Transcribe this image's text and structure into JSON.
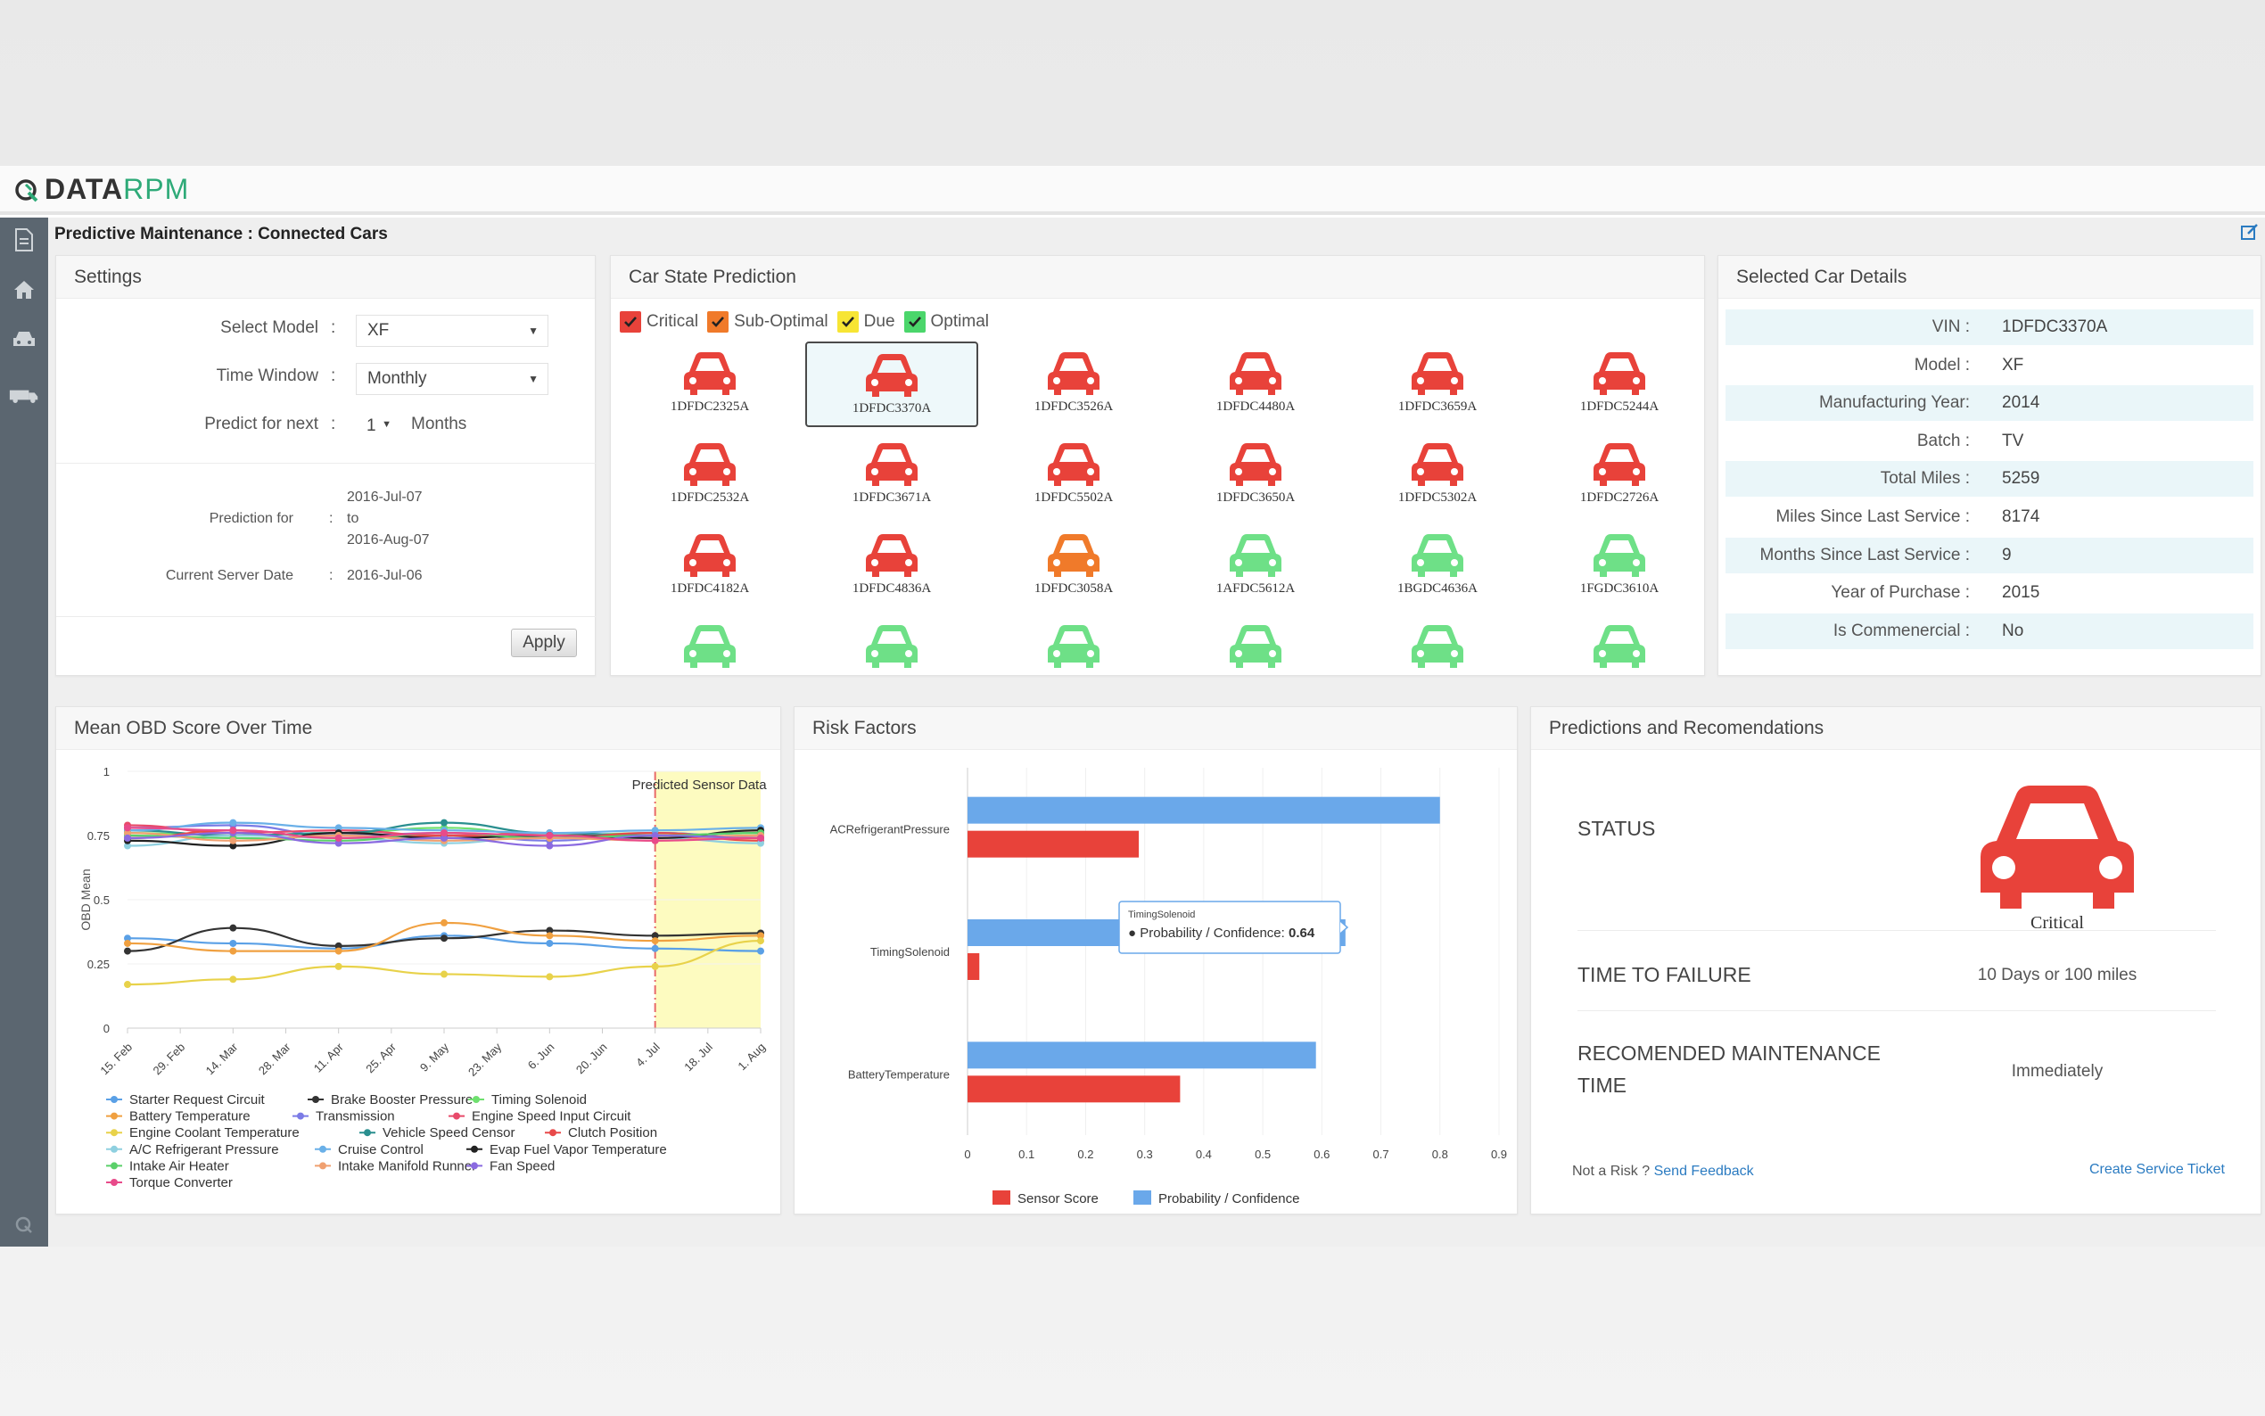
{
  "header": {
    "brand_a": "DATA",
    "brand_b": "RPM"
  },
  "page_title": "Predictive Maintenance : Connected Cars",
  "settings": {
    "title": "Settings",
    "model_label": "Select Model",
    "model_value": "XF",
    "window_label": "Time Window",
    "window_value": "Monthly",
    "predict_label": "Predict for next",
    "predict_value": "1",
    "predict_unit": "Months",
    "prediction_for_label": "Prediction for",
    "prediction_from": "2016-Jul-07",
    "prediction_to_word": "to",
    "prediction_to": "2016-Aug-07",
    "server_date_label": "Current Server Date",
    "server_date": "2016-Jul-06",
    "colon": ":",
    "apply": "Apply"
  },
  "car_state": {
    "title": "Car State Prediction",
    "legend": [
      {
        "label": "Critical",
        "color": "#e8423a"
      },
      {
        "label": "Sub-Optimal",
        "color": "#f07a2a"
      },
      {
        "label": "Due",
        "color": "#f7e534"
      },
      {
        "label": "Optimal",
        "color": "#4bd66b"
      }
    ],
    "cars": [
      {
        "id": "1DFDC2325A",
        "state": "critical"
      },
      {
        "id": "1DFDC3370A",
        "state": "critical",
        "selected": true
      },
      {
        "id": "1DFDC3526A",
        "state": "critical"
      },
      {
        "id": "1DFDC4480A",
        "state": "critical"
      },
      {
        "id": "1DFDC3659A",
        "state": "critical"
      },
      {
        "id": "1DFDC5244A",
        "state": "critical"
      },
      {
        "id": "1DFDC2532A",
        "state": "critical"
      },
      {
        "id": "1DFDC3671A",
        "state": "critical"
      },
      {
        "id": "1DFDC5502A",
        "state": "critical"
      },
      {
        "id": "1DFDC3650A",
        "state": "critical"
      },
      {
        "id": "1DFDC5302A",
        "state": "critical"
      },
      {
        "id": "1DFDC2726A",
        "state": "critical"
      },
      {
        "id": "1DFDC4182A",
        "state": "critical"
      },
      {
        "id": "1DFDC4836A",
        "state": "critical"
      },
      {
        "id": "1DFDC3058A",
        "state": "suboptimal"
      },
      {
        "id": "1AFDC5612A",
        "state": "optimal"
      },
      {
        "id": "1BGDC4636A",
        "state": "optimal"
      },
      {
        "id": "1FGDC3610A",
        "state": "optimal"
      },
      {
        "id": "",
        "state": "optimal"
      },
      {
        "id": "",
        "state": "optimal"
      },
      {
        "id": "",
        "state": "optimal"
      },
      {
        "id": "",
        "state": "optimal"
      },
      {
        "id": "",
        "state": "optimal"
      },
      {
        "id": "",
        "state": "optimal"
      }
    ],
    "state_colors": {
      "critical": "#e8423a",
      "suboptimal": "#f07a2a",
      "due": "#f7e534",
      "optimal": "#6ee087"
    }
  },
  "details": {
    "title": "Selected Car Details",
    "rows": [
      {
        "k": "VIN :",
        "v": "1DFDC3370A"
      },
      {
        "k": "Model :",
        "v": "XF"
      },
      {
        "k": "Manufacturing Year:",
        "v": "2014"
      },
      {
        "k": "Batch :",
        "v": "TV"
      },
      {
        "k": "Total Miles :",
        "v": "5259"
      },
      {
        "k": "Miles Since Last Service :",
        "v": "8174"
      },
      {
        "k": "Months Since Last Service :",
        "v": "9"
      },
      {
        "k": "Year of Purchase :",
        "v": "2015"
      },
      {
        "k": "Is Commenercial :",
        "v": "No"
      }
    ]
  },
  "obd": {
    "title": "Mean OBD Score Over Time",
    "chart_data": {
      "type": "line",
      "title": "",
      "ylabel": "OBD Mean",
      "xlabel": "",
      "ylim": [
        0,
        1
      ],
      "yticks": [
        "0",
        "0.25",
        "0.5",
        "0.75",
        "1"
      ],
      "x": [
        "15. Feb",
        "29. Feb",
        "14. Mar",
        "28. Mar",
        "11. Apr",
        "25. Apr",
        "9. May",
        "23. May",
        "6. Jun",
        "20. Jun",
        "4. Jul",
        "18. Jul",
        "1. Aug"
      ],
      "band_label": "Predicted Sensor Data",
      "series": [
        {
          "name": "Starter Request Circuit",
          "color": "#5aa0e6",
          "x": [
            0,
            2,
            4,
            6,
            8,
            10,
            12
          ],
          "values": [
            0.35,
            0.33,
            0.31,
            0.36,
            0.33,
            0.31,
            0.3
          ]
        },
        {
          "name": "Brake Booster Pressure",
          "color": "#333333",
          "x": [
            0,
            2,
            4,
            6,
            8,
            10,
            12
          ],
          "values": [
            0.3,
            0.39,
            0.32,
            0.35,
            0.38,
            0.36,
            0.37
          ]
        },
        {
          "name": "Timing Solenoid",
          "color": "#6fe06f",
          "x": [
            0,
            2,
            4,
            6,
            8,
            10,
            12
          ],
          "values": [
            0.76,
            0.75,
            0.76,
            0.78,
            0.75,
            0.76,
            0.74
          ]
        },
        {
          "name": "Battery Temperature",
          "color": "#f0a040",
          "x": [
            0,
            2,
            4,
            6,
            8,
            10,
            12
          ],
          "values": [
            0.33,
            0.3,
            0.3,
            0.41,
            0.36,
            0.34,
            0.36
          ]
        },
        {
          "name": "Transmission",
          "color": "#7b7be6",
          "x": [
            0,
            2,
            4,
            6,
            8,
            10,
            12
          ],
          "values": [
            0.78,
            0.79,
            0.75,
            0.76,
            0.73,
            0.76,
            0.74
          ]
        },
        {
          "name": "Engine Speed Input Circuit",
          "color": "#e84a6a",
          "x": [
            0,
            2,
            4,
            6,
            8,
            10,
            12
          ],
          "values": [
            0.79,
            0.76,
            0.77,
            0.75,
            0.76,
            0.74,
            0.75
          ]
        },
        {
          "name": "Engine Coolant Temperature",
          "color": "#e8d24a",
          "x": [
            0,
            2,
            4,
            6,
            8,
            10,
            12
          ],
          "values": [
            0.17,
            0.19,
            0.24,
            0.21,
            0.2,
            0.24,
            0.34
          ]
        },
        {
          "name": "Vehicle Speed Censor",
          "color": "#2a8f8f",
          "x": [
            0,
            2,
            4,
            6,
            8,
            10,
            12
          ],
          "values": [
            0.77,
            0.75,
            0.76,
            0.8,
            0.76,
            0.75,
            0.76
          ]
        },
        {
          "name": "Clutch Position",
          "color": "#e84a4a",
          "x": [
            0,
            2,
            4,
            6,
            8,
            10,
            12
          ],
          "values": [
            0.74,
            0.77,
            0.74,
            0.75,
            0.74,
            0.76,
            0.73
          ]
        },
        {
          "name": "A/C Refrigerant Pressure",
          "color": "#8fd0e0",
          "x": [
            0,
            2,
            4,
            6,
            8,
            10,
            12
          ],
          "values": [
            0.71,
            0.75,
            0.74,
            0.72,
            0.75,
            0.74,
            0.72
          ]
        },
        {
          "name": "Cruise Control",
          "color": "#6ab0e8",
          "x": [
            0,
            2,
            4,
            6,
            8,
            10,
            12
          ],
          "values": [
            0.77,
            0.8,
            0.78,
            0.77,
            0.76,
            0.77,
            0.78
          ]
        },
        {
          "name": "Evap Fuel Vapor Temperature",
          "color": "#222222",
          "x": [
            0,
            2,
            4,
            6,
            8,
            10,
            12
          ],
          "values": [
            0.73,
            0.71,
            0.76,
            0.74,
            0.75,
            0.74,
            0.77
          ]
        },
        {
          "name": "Intake Air Heater",
          "color": "#5ad06a",
          "x": [
            0,
            2,
            4,
            6,
            8,
            10,
            12
          ],
          "values": [
            0.75,
            0.74,
            0.73,
            0.76,
            0.74,
            0.75,
            0.76
          ]
        },
        {
          "name": "Intake Manifold Runner",
          "color": "#f0a070",
          "x": [
            0,
            2,
            4,
            6,
            8,
            10,
            12
          ],
          "values": [
            0.76,
            0.73,
            0.75,
            0.73,
            0.74,
            0.73,
            0.75
          ]
        },
        {
          "name": "Fan Speed",
          "color": "#8a6ae0",
          "x": [
            0,
            2,
            4,
            6,
            8,
            10,
            12
          ],
          "values": [
            0.74,
            0.76,
            0.72,
            0.74,
            0.71,
            0.75,
            0.74
          ]
        },
        {
          "name": "Torque Converter",
          "color": "#e84a8a",
          "x": [
            0,
            2,
            4,
            6,
            8,
            10,
            12
          ],
          "values": [
            0.78,
            0.77,
            0.74,
            0.76,
            0.75,
            0.73,
            0.74
          ]
        }
      ]
    }
  },
  "risk": {
    "title": "Risk Factors",
    "chart_data": {
      "type": "bar",
      "orientation": "horizontal",
      "categories": [
        "ACRefrigerantPressure",
        "TimingSolenoid",
        "BatteryTemperature"
      ],
      "xlim": [
        0,
        0.9
      ],
      "xticks": [
        "0",
        "0.1",
        "0.2",
        "0.3",
        "0.4",
        "0.5",
        "0.6",
        "0.7",
        "0.8",
        "0.9"
      ],
      "series": [
        {
          "name": "Probability / Confidence",
          "color": "#6aa8ea",
          "values": [
            0.8,
            0.64,
            0.59
          ]
        },
        {
          "name": "Sensor Score",
          "color": "#e8423a",
          "values": [
            0.29,
            0.02,
            0.36
          ]
        }
      ],
      "tooltip": {
        "title": "TimingSolenoid",
        "label": "Probability / Confidence:",
        "value": "0.64"
      }
    }
  },
  "predictions": {
    "title": "Predictions and Recomendations",
    "status_label": "STATUS",
    "status_value": "Critical",
    "status_color": "#e8423a",
    "ttf_label": "TIME TO FAILURE",
    "ttf_value": "10 Days or 100 miles",
    "maint_label": "RECOMENDED MAINTENANCE TIME",
    "maint_value": "Immediately",
    "not_risk": "Not a Risk ?",
    "feedback": "Send Feedback",
    "ticket": "Create Service Ticket"
  }
}
